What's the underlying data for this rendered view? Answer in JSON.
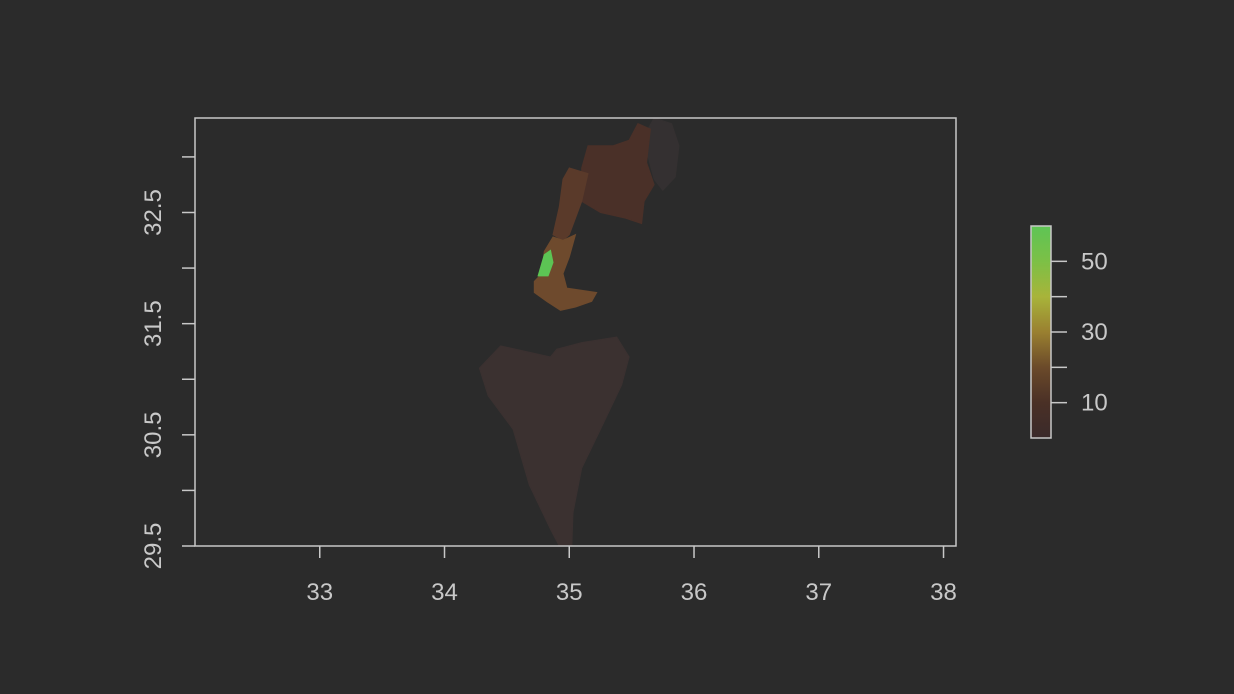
{
  "colors": {
    "background": "#2b2b2b",
    "frame": "#c8c8c8",
    "text": "#c8c8c8",
    "colorbar": [
      "#3a2a2a",
      "#4a3026",
      "#6b4a2a",
      "#9a8030",
      "#a8b43a",
      "#7cc046",
      "#5ec455"
    ]
  },
  "chart_data": {
    "type": "heatmap",
    "title": "",
    "xlabel": "",
    "ylabel": "",
    "xlim": [
      32.0,
      38.1
    ],
    "ylim": [
      29.5,
      33.35
    ],
    "x_ticks": [
      33,
      34,
      35,
      36,
      37,
      38
    ],
    "x_tick_labels": [
      "33",
      "34",
      "35",
      "36",
      "37",
      "38"
    ],
    "y_ticks": [
      30.0,
      31.0,
      32.0,
      33.0
    ],
    "y_ticks_labeled": [
      29.5,
      30.5,
      31.5,
      32.5
    ],
    "y_tick_labels": [
      "29.5",
      "30.5",
      "31.5",
      "32.5"
    ],
    "legend": {
      "placement": "right",
      "range": [
        0,
        60
      ],
      "ticks": [
        10,
        20,
        30,
        40,
        50
      ],
      "tick_labels": [
        "10",
        "",
        "30",
        "",
        "50"
      ]
    },
    "regions": [
      {
        "value": 2,
        "color": "#3b3130",
        "polygon": [
          [
            34.85,
            31.2
          ],
          [
            34.45,
            31.3
          ],
          [
            34.28,
            31.1
          ],
          [
            34.35,
            30.85
          ],
          [
            34.55,
            30.55
          ],
          [
            34.68,
            30.05
          ],
          [
            34.85,
            29.65
          ],
          [
            34.92,
            29.5
          ],
          [
            35.02,
            29.5
          ],
          [
            35.03,
            29.8
          ],
          [
            35.1,
            30.2
          ],
          [
            35.25,
            30.55
          ],
          [
            35.42,
            30.95
          ],
          [
            35.48,
            31.2
          ],
          [
            35.38,
            31.38
          ],
          [
            35.1,
            31.33
          ],
          [
            34.9,
            31.27
          ]
        ]
      },
      {
        "value": 1,
        "color": "#343031",
        "polygon": [
          [
            35.68,
            33.35
          ],
          [
            35.82,
            33.3
          ],
          [
            35.88,
            33.1
          ],
          [
            35.85,
            32.82
          ],
          [
            35.75,
            32.7
          ],
          [
            35.68,
            32.8
          ],
          [
            35.62,
            33.05
          ],
          [
            35.63,
            33.25
          ]
        ]
      },
      {
        "value": 5,
        "color": "#4a3028",
        "polygon": [
          [
            35.55,
            33.3
          ],
          [
            35.65,
            33.25
          ],
          [
            35.62,
            32.95
          ],
          [
            35.68,
            32.75
          ],
          [
            35.6,
            32.6
          ],
          [
            35.58,
            32.4
          ],
          [
            35.45,
            32.45
          ],
          [
            35.25,
            32.5
          ],
          [
            35.1,
            32.6
          ],
          [
            35.1,
            32.9
          ],
          [
            35.15,
            33.1
          ],
          [
            35.35,
            33.1
          ],
          [
            35.48,
            33.15
          ]
        ]
      },
      {
        "value": 8,
        "color": "#5a3a2a",
        "polygon": [
          [
            35.0,
            32.9
          ],
          [
            35.15,
            32.85
          ],
          [
            35.1,
            32.6
          ],
          [
            35.05,
            32.45
          ],
          [
            35.0,
            32.3
          ],
          [
            34.95,
            32.25
          ],
          [
            34.87,
            32.3
          ],
          [
            34.92,
            32.55
          ],
          [
            34.95,
            32.8
          ]
        ]
      },
      {
        "value": 14,
        "color": "#6e4a2d",
        "polygon": [
          [
            34.87,
            32.28
          ],
          [
            34.95,
            32.25
          ],
          [
            35.05,
            32.3
          ],
          [
            35.0,
            32.1
          ],
          [
            34.95,
            31.95
          ],
          [
            34.98,
            31.82
          ],
          [
            35.22,
            31.78
          ],
          [
            35.18,
            31.7
          ],
          [
            35.05,
            31.65
          ],
          [
            34.93,
            31.62
          ],
          [
            34.82,
            31.7
          ],
          [
            34.72,
            31.78
          ],
          [
            34.72,
            31.88
          ],
          [
            34.78,
            31.95
          ],
          [
            34.8,
            32.15
          ]
        ]
      },
      {
        "value": 55,
        "color": "#5cc454",
        "polygon": [
          [
            34.75,
            31.93
          ],
          [
            34.8,
            32.12
          ],
          [
            34.85,
            32.16
          ],
          [
            34.87,
            32.05
          ],
          [
            34.83,
            31.93
          ]
        ]
      }
    ]
  }
}
